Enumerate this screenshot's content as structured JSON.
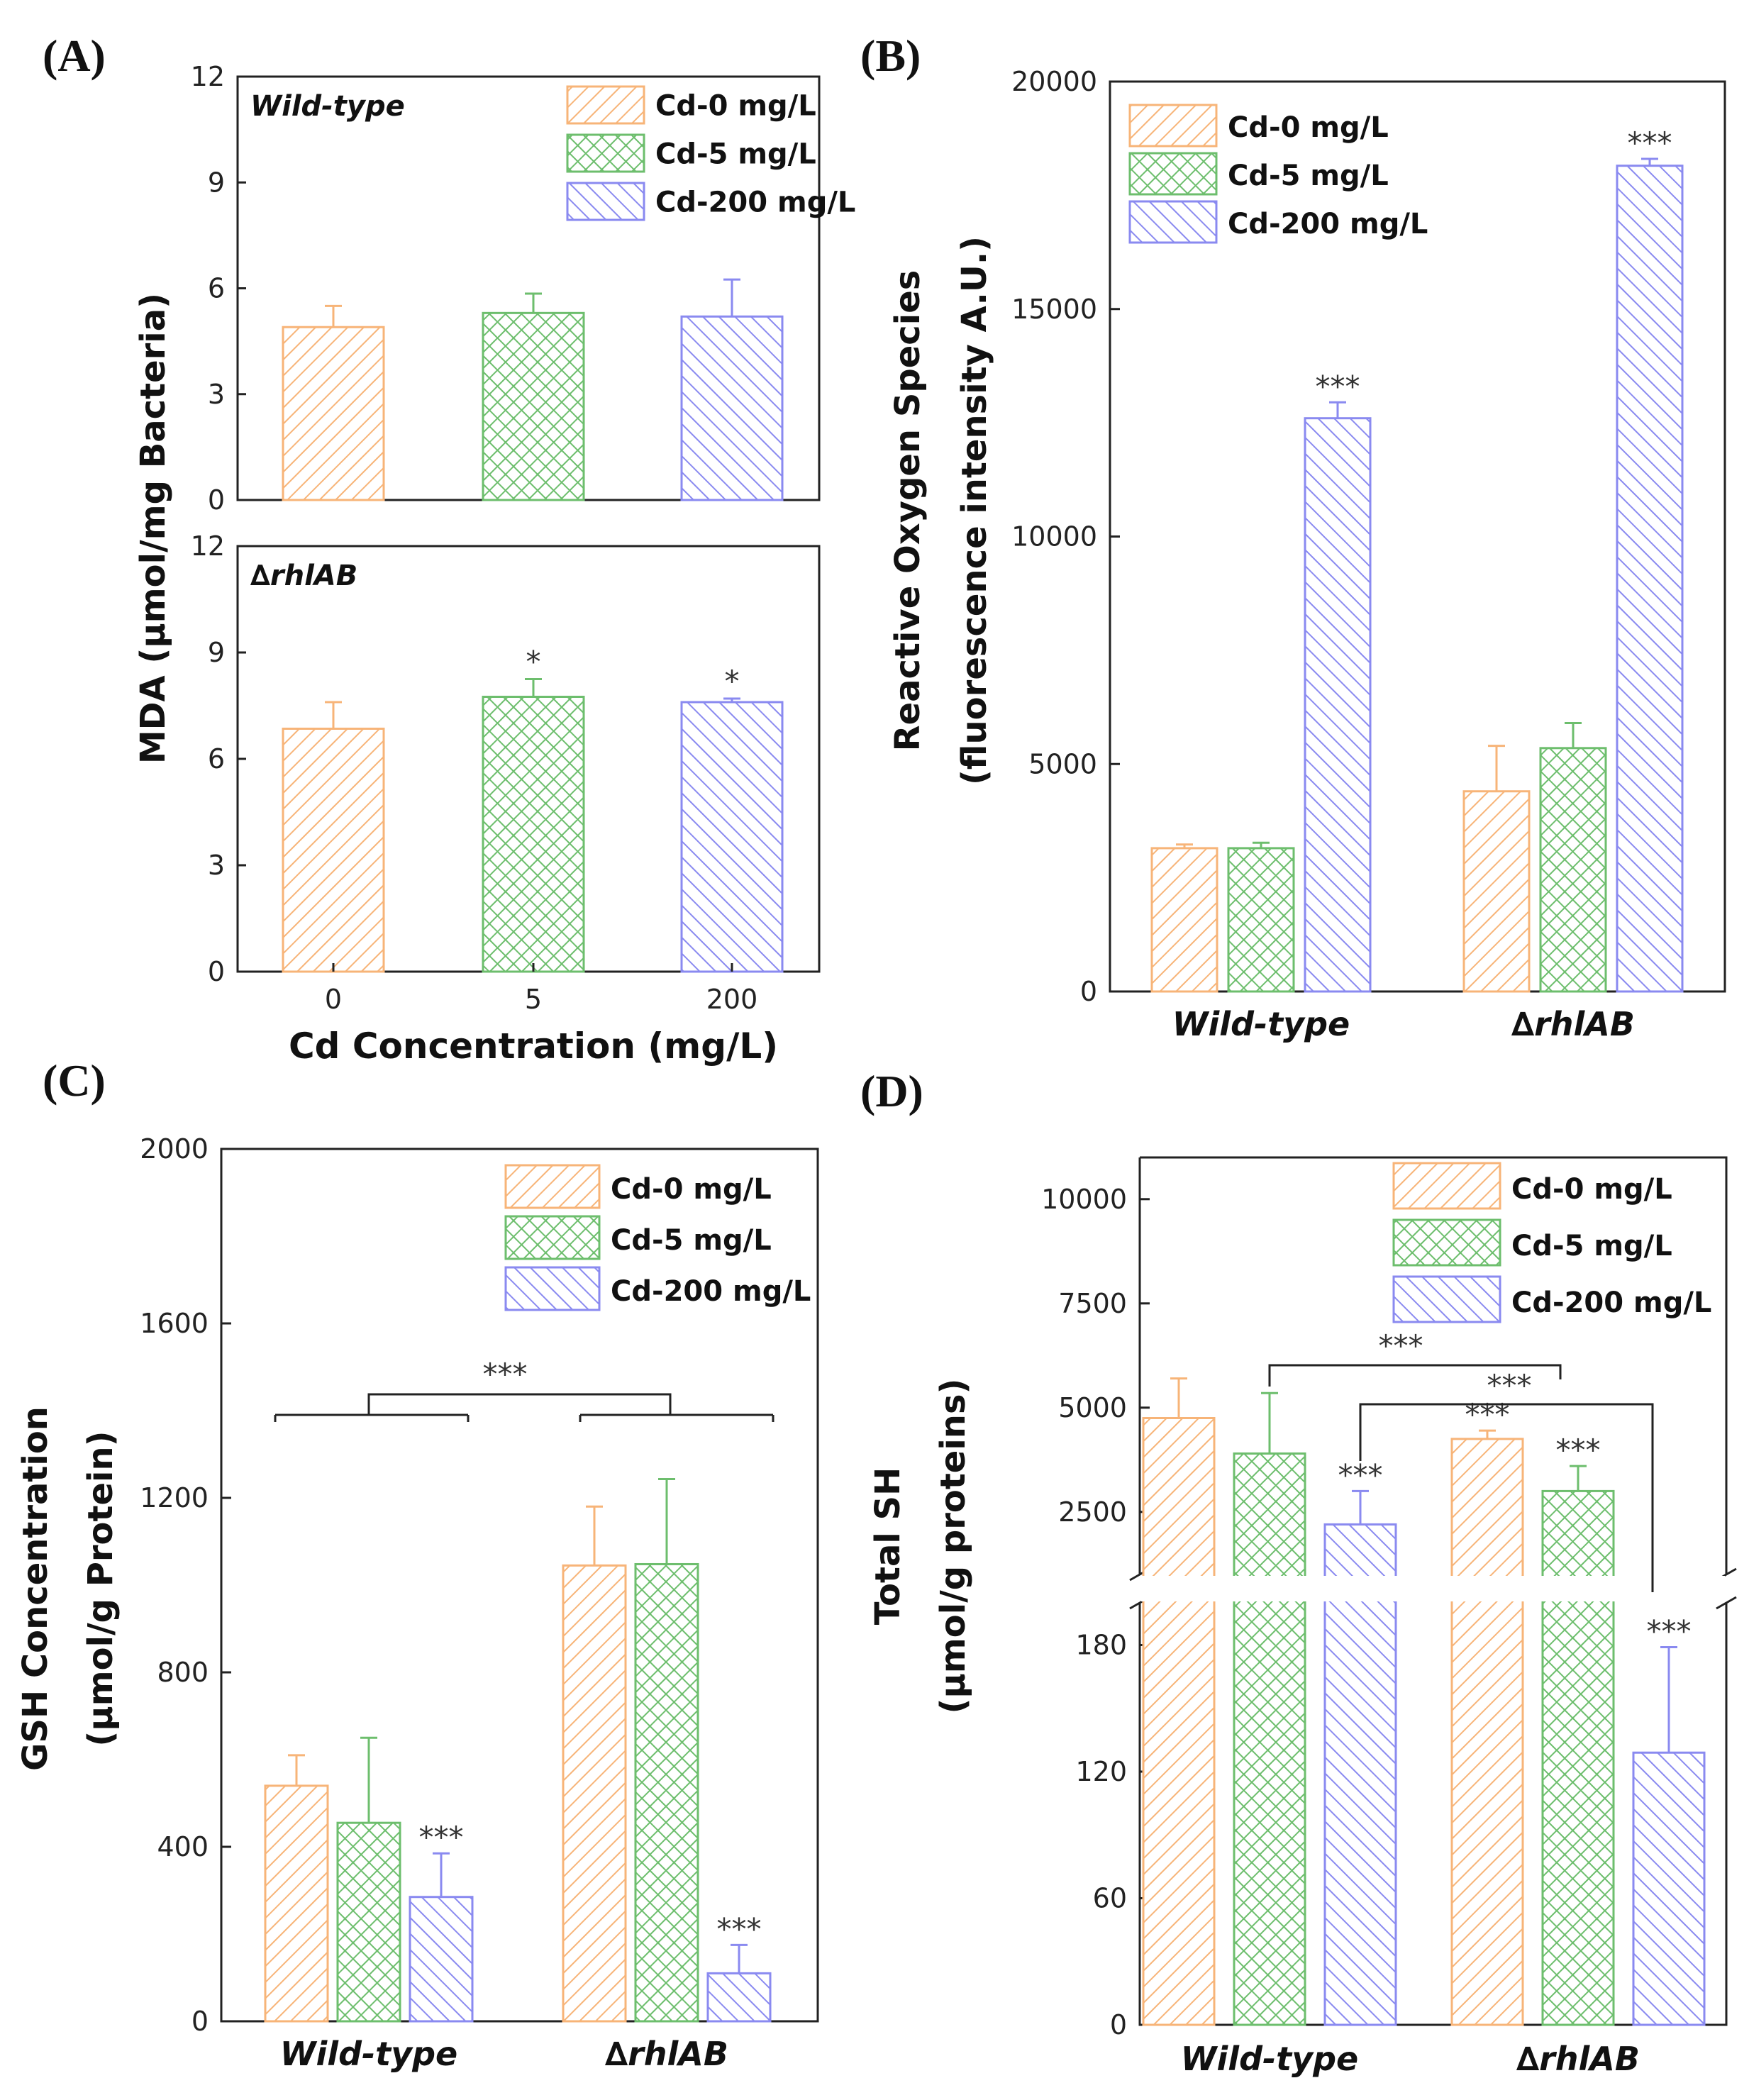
{
  "colors": {
    "cd0": "#F7B478",
    "cd5": "#6DBE6D",
    "cd200": "#8A8AF0"
  },
  "chart_data": [
    {
      "panel": "(A)",
      "type": "bar",
      "sub_panels": [
        {
          "label": "Wild-type",
          "categories": [
            "0",
            "5",
            "200"
          ],
          "values": [
            4.9,
            5.3,
            5.2
          ],
          "errors": [
            0.6,
            0.55,
            1.05
          ],
          "stars": [
            "",
            "",
            ""
          ],
          "ylim": [
            0,
            12
          ],
          "yticks": [
            "0",
            "3",
            "6",
            "9",
            "12"
          ],
          "legend": [
            "Cd-0 mg/L",
            "Cd-5 mg/L",
            "Cd-200 mg/L"
          ]
        },
        {
          "label": "∆rhlAB",
          "categories": [
            "0",
            "5",
            "200"
          ],
          "values": [
            6.85,
            7.75,
            7.6
          ],
          "errors": [
            0.75,
            0.5,
            0.1
          ],
          "stars": [
            "",
            "*",
            "*"
          ],
          "ylim": [
            0,
            12
          ],
          "yticks": [
            "0",
            "3",
            "6",
            "9",
            "12"
          ]
        }
      ],
      "ylabel": "MDA (μmol/mg Bacteria)",
      "xlabel": "Cd Concentration (mg/L)",
      "xticks": [
        "0",
        "5",
        "200"
      ]
    },
    {
      "panel": "(B)",
      "type": "bar",
      "categories": [
        "Wild-type",
        "∆rhlAB"
      ],
      "series": [
        {
          "name": "Cd-0 mg/L",
          "values": [
            3150,
            4400
          ],
          "errors": [
            80,
            1000
          ],
          "stars": [
            "",
            ""
          ]
        },
        {
          "name": "Cd-5 mg/L",
          "values": [
            3150,
            5350
          ],
          "errors": [
            120,
            550
          ],
          "stars": [
            "",
            ""
          ]
        },
        {
          "name": "Cd-200 mg/L",
          "values": [
            12600,
            18150
          ],
          "errors": [
            350,
            150
          ],
          "stars": [
            "***",
            "***"
          ]
        }
      ],
      "ylim": [
        0,
        20000
      ],
      "yticks": [
        "0",
        "5000",
        "10000",
        "15000",
        "20000"
      ],
      "ylabel": [
        "Reactive Oxygen Species",
        "(fluorescence intensity A.U.)"
      ]
    },
    {
      "panel": "(C)",
      "type": "bar",
      "categories": [
        "Wild-type",
        "∆rhlAB"
      ],
      "series": [
        {
          "name": "Cd-0 mg/L",
          "values": [
            540,
            1045
          ],
          "errors": [
            70,
            135
          ],
          "stars": [
            "",
            ""
          ]
        },
        {
          "name": "Cd-5 mg/L",
          "values": [
            455,
            1048
          ],
          "errors": [
            195,
            195
          ],
          "stars": [
            "",
            ""
          ]
        },
        {
          "name": "Cd-200 mg/L",
          "values": [
            285,
            110
          ],
          "errors": [
            100,
            65
          ],
          "stars": [
            "***",
            "***"
          ]
        }
      ],
      "ylim": [
        0,
        2000
      ],
      "yticks": [
        "0",
        "400",
        "800",
        "1200",
        "1600",
        "2000"
      ],
      "ylabel": [
        "GSH Concentration",
        "(μmol/g Protein)"
      ],
      "bracket_star": "***"
    },
    {
      "panel": "(D)",
      "type": "bar",
      "broken_axis": true,
      "categories": [
        "Wild-type",
        "∆rhlAB"
      ],
      "series": [
        {
          "name": "Cd-0 mg/L",
          "values": [
            4750,
            4250
          ],
          "errors": [
            950,
            200
          ],
          "stars": [
            "",
            "***"
          ]
        },
        {
          "name": "Cd-5 mg/L",
          "values": [
            3900,
            3000
          ],
          "errors": [
            1450,
            600
          ],
          "stars": [
            "",
            "***"
          ]
        },
        {
          "name": "Cd-200 mg/L",
          "values": [
            2200,
            129
          ],
          "errors": [
            800,
            50
          ],
          "stars": [
            "***",
            "***"
          ]
        }
      ],
      "ylim_upper": [
        1000,
        11000
      ],
      "yticks_upper": [
        "2500",
        "5000",
        "7500",
        "10000"
      ],
      "ylim_lower": [
        0,
        200
      ],
      "yticks_lower": [
        "0",
        "60",
        "120",
        "180"
      ],
      "ylabel": [
        "Total SH",
        "(μmol/g proteins)"
      ],
      "bracket_stars": [
        "***",
        "***"
      ]
    }
  ]
}
